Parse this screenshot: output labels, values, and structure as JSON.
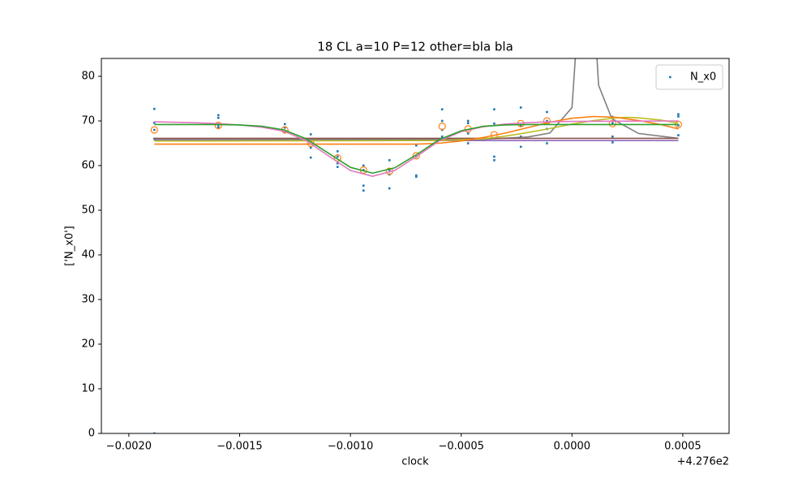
{
  "chart_data": {
    "type": "line",
    "title": "18 CL a=10 P=12 other=bla bla",
    "x_label": "clock",
    "y_label": "['N_x0']",
    "x_offset_label": "+4.276e2",
    "xlim": [
      -0.002124,
      0.000709
    ],
    "ylim": [
      0,
      84
    ],
    "xticks": [
      {
        "value": -0.002,
        "label": "−0.0020"
      },
      {
        "value": -0.0015,
        "label": "−0.0015"
      },
      {
        "value": -0.001,
        "label": "−0.0010"
      },
      {
        "value": -0.0005,
        "label": "−0.0005"
      },
      {
        "value": 0,
        "label": "0.0000"
      },
      0.0005
    ],
    "yticks": [
      0,
      10,
      20,
      30,
      40,
      50,
      60,
      70,
      80
    ],
    "legend": "upper right",
    "series": [
      {
        "style": "line",
        "color": "#7f7f7f",
        "x": [
          -0.001885,
          -0.0004,
          -0.0002,
          -0.0001,
          0,
          3e-05,
          0.0001,
          0.00012,
          0.00018,
          0.0003,
          0.00048
        ],
        "values": [
          65.8,
          65.9,
          66.4,
          67.3,
          73,
          95,
          95,
          78,
          70.5,
          67.2,
          66.1
        ]
      },
      {
        "style": "line",
        "color": "#8c564b",
        "x": [
          -0.001885,
          0.00048
        ],
        "values": [
          66.1,
          66.1
        ]
      },
      {
        "style": "line",
        "color": "#9467bd",
        "x": [
          -0.001885,
          0.00048
        ],
        "values": [
          65.6,
          65.6
        ]
      },
      {
        "style": "line",
        "color": "#bcbd22",
        "x": [
          -0.001885,
          -0.0006,
          -0.0004,
          -0.0003,
          -0.0002,
          -0.0001,
          0,
          0.0001,
          0.0002,
          0.00025,
          0.0003,
          0.0004,
          0.00048
        ],
        "values": [
          65.5,
          65.6,
          66,
          66.6,
          67.4,
          68.3,
          69.3,
          70.1,
          70.7,
          70.8,
          70.7,
          70.2,
          69.5
        ]
      },
      {
        "style": "line",
        "color": "#ff7f0e",
        "x": [
          -0.001885,
          -0.0007,
          -0.0006,
          -0.0005,
          -0.0004,
          -0.0003,
          -0.0002,
          -0.0001,
          0,
          0.0001,
          0.0002,
          0.0003,
          0.0004,
          0.00048
        ],
        "values": [
          64.8,
          64.8,
          65,
          65.5,
          66.3,
          67.3,
          68.5,
          69.7,
          70.6,
          71,
          70.8,
          70.1,
          69.2,
          68.2
        ]
      },
      {
        "style": "line",
        "color": "#e377c2",
        "x": [
          -0.001885,
          -0.0017,
          -0.0016,
          -0.0015,
          -0.0014,
          -0.0013,
          -0.0012,
          -0.0011,
          -0.001,
          -0.0009,
          -0.0008,
          -0.0007,
          -0.0006,
          -0.0005,
          -0.0004,
          -0.0003,
          -0.0002,
          -0.0001,
          0,
          0.00048
        ],
        "values": [
          69.8,
          69.6,
          69.4,
          69.1,
          68.6,
          67.7,
          65.6,
          62.2,
          58.9,
          57.6,
          58.9,
          62.1,
          65.5,
          67.6,
          68.7,
          69.3,
          69.6,
          69.8,
          69.9,
          70
        ]
      },
      {
        "style": "line",
        "color": "#2ca02c",
        "x": [
          -0.001885,
          -0.0016,
          -0.0015,
          -0.0014,
          -0.0013,
          -0.0012,
          -0.0011,
          -0.001,
          -0.0009,
          -0.0008,
          -0.0007,
          -0.0006,
          -0.0005,
          -0.0004,
          -0.0003,
          -0.0002,
          0.00048
        ],
        "values": [
          69.2,
          69.2,
          69.1,
          68.8,
          68,
          66,
          62.8,
          59.6,
          58.3,
          59.5,
          62.5,
          65.8,
          67.8,
          68.8,
          69.1,
          69.2,
          69.2
        ]
      },
      {
        "style": "circles",
        "color": "#ff7f0e",
        "x": [
          -0.001885,
          -0.001596,
          -0.001296,
          -0.001179,
          -0.001058,
          -0.000941,
          -0.000824,
          -0.000703,
          -0.000586,
          -0.000469,
          -0.000351,
          -0.000231,
          -0.000113,
          0.000183,
          0.00048
        ],
        "values": [
          68,
          69,
          68,
          65,
          61.7,
          59,
          58.7,
          62.2,
          68.8,
          68.2,
          66.9,
          69.4,
          70,
          69.4,
          69.2
        ]
      },
      {
        "style": "points",
        "name": "N_x0",
        "color": "#1f77b4",
        "x": [
          -0.001885,
          -0.001885,
          -0.001885,
          -0.001885,
          -0.001885,
          -0.001596,
          -0.001596,
          -0.001596,
          -0.001596,
          -0.001296,
          -0.001296,
          -0.001296,
          -0.001296,
          -0.001179,
          -0.001179,
          -0.001179,
          -0.001179,
          -0.001058,
          -0.001058,
          -0.001058,
          -0.001058,
          -0.000941,
          -0.000941,
          -0.000941,
          -0.000941,
          -0.000824,
          -0.000824,
          -0.000824,
          -0.000824,
          -0.000703,
          -0.000703,
          -0.000703,
          -0.000703,
          -0.000586,
          -0.000586,
          -0.000586,
          -0.000586,
          -0.000469,
          -0.000469,
          -0.000469,
          -0.000469,
          -0.000351,
          -0.000351,
          -0.000351,
          -0.000351,
          -0.000231,
          -0.000231,
          -0.000231,
          -0.000231,
          -0.000113,
          -0.000113,
          -0.000113,
          -0.000113,
          0.000183,
          0.000183,
          0.000183,
          0.000183,
          0.00048,
          0.00048,
          0.00048,
          0.00048
        ],
        "values": [
          72.7,
          69.6,
          68,
          66,
          0,
          71.3,
          70.7,
          69,
          68.5,
          69.3,
          68.5,
          67.6,
          65.8,
          67,
          65.5,
          64,
          61.8,
          63.2,
          62,
          60.5,
          59.7,
          60,
          59,
          55.5,
          54.4,
          61.2,
          59,
          58,
          54.9,
          64.5,
          62,
          57.8,
          57.5,
          72.6,
          70,
          68,
          66.5,
          70,
          69.5,
          67.2,
          65,
          72.6,
          69.4,
          62,
          61.2,
          73,
          69,
          66.5,
          64.2,
          72,
          70,
          68.2,
          65,
          70.9,
          69.5,
          66.5,
          65.2,
          71.5,
          71,
          69,
          66.8
        ]
      }
    ]
  }
}
